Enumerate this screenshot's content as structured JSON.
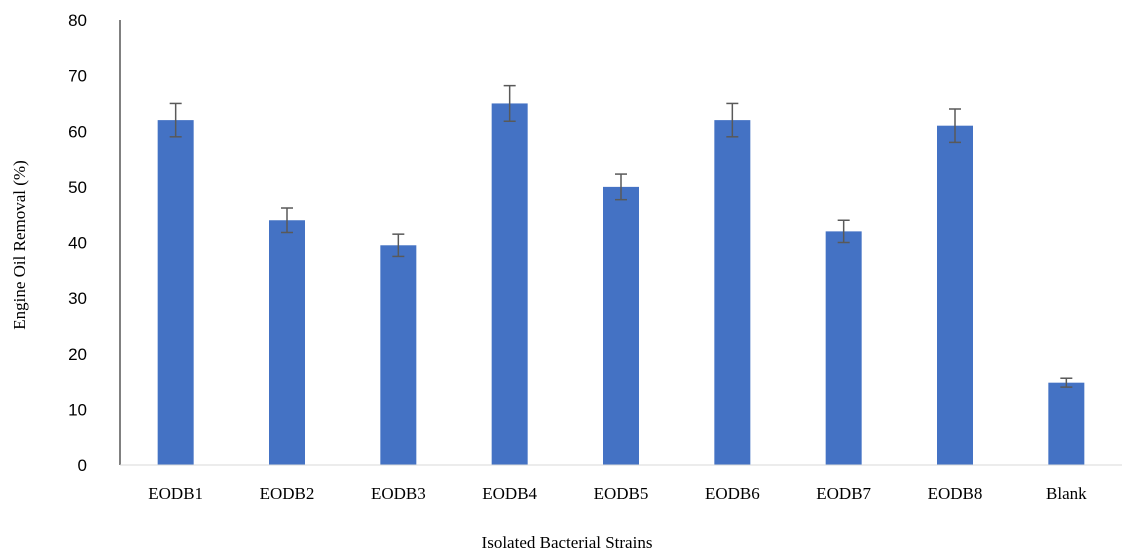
{
  "chart_data": {
    "type": "bar",
    "title": "",
    "xlabel": "Isolated Bacterial Strains",
    "ylabel": "Engine Oil Removal (%)",
    "ylim": [
      0,
      80
    ],
    "yticks": [
      0,
      10,
      20,
      30,
      40,
      50,
      60,
      70,
      80
    ],
    "grid": false,
    "legend": "none",
    "categories": [
      "EODB1",
      "EODB2",
      "EODB3",
      "EODB4",
      "EODB5",
      "EODB6",
      "EODB7",
      "EODB8",
      "Blank"
    ],
    "series": [
      {
        "values": [
          62,
          44,
          39.5,
          65,
          50,
          62,
          42,
          61,
          14.8
        ],
        "errors": [
          3,
          2.2,
          2,
          3.2,
          2.3,
          3,
          2,
          3,
          0.8
        ],
        "color": "#4472C4"
      }
    ],
    "error_bar_color": "#595959"
  }
}
